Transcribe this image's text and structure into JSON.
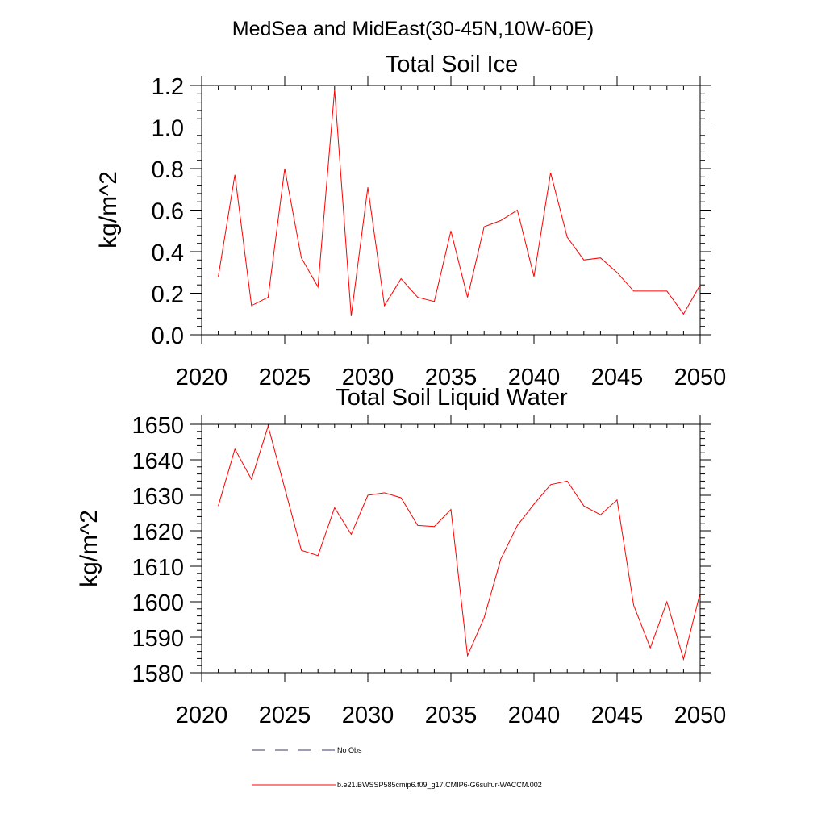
{
  "figure": {
    "title": "MedSea and MidEast(30-45N,10W-60E)"
  },
  "chart_data": [
    {
      "type": "line",
      "title": "Total Soil Ice",
      "xlabel": "",
      "ylabel": "kg/m^2",
      "xlim": [
        2020,
        2050
      ],
      "ylim": [
        0.0,
        1.2
      ],
      "xticks": [
        2020,
        2025,
        2030,
        2035,
        2040,
        2045,
        2050
      ],
      "xtick_labels": [
        "2020",
        "2025",
        "2030",
        "2035",
        "2040",
        "2045",
        "2050"
      ],
      "yticks": [
        0.0,
        0.2,
        0.4,
        0.6,
        0.8,
        1.0,
        1.2
      ],
      "ytick_labels": [
        "0.0",
        "0.2",
        "0.4",
        "0.6",
        "0.8",
        "1.0",
        "1.2"
      ],
      "grid": false,
      "series": [
        {
          "name": "b.e21.BWSSP585cmip6.f09_g17.CMIP6-G6sulfur-WACCM.002",
          "color": "#ff0000",
          "x": [
            2021,
            2022,
            2023,
            2024,
            2025,
            2026,
            2027,
            2028,
            2029,
            2030,
            2031,
            2032,
            2033,
            2034,
            2035,
            2036,
            2037,
            2038,
            2039,
            2040,
            2041,
            2042,
            2043,
            2044,
            2045,
            2046,
            2047,
            2048,
            2049,
            2050
          ],
          "y": [
            0.28,
            0.77,
            0.14,
            0.18,
            0.8,
            0.37,
            0.23,
            1.18,
            0.09,
            0.71,
            0.14,
            0.27,
            0.18,
            0.16,
            0.5,
            0.18,
            0.52,
            0.55,
            0.6,
            0.28,
            0.78,
            0.47,
            0.36,
            0.37,
            0.3,
            0.21,
            0.21,
            0.21,
            0.1,
            0.24
          ]
        }
      ]
    },
    {
      "type": "line",
      "title": "Total Soil Liquid Water",
      "xlabel": "",
      "ylabel": "kg/m^2",
      "xlim": [
        2020,
        2050
      ],
      "ylim": [
        1580,
        1650
      ],
      "xticks": [
        2020,
        2025,
        2030,
        2035,
        2040,
        2045,
        2050
      ],
      "xtick_labels": [
        "2020",
        "2025",
        "2030",
        "2035",
        "2040",
        "2045",
        "2050"
      ],
      "yticks": [
        1580,
        1590,
        1600,
        1610,
        1620,
        1630,
        1640,
        1650
      ],
      "ytick_labels": [
        "1580",
        "1590",
        "1600",
        "1610",
        "1620",
        "1630",
        "1640",
        "1650"
      ],
      "grid": false,
      "series": [
        {
          "name": "b.e21.BWSSP585cmip6.f09_g17.CMIP6-G6sulfur-WACCM.002",
          "color": "#ff0000",
          "x": [
            2021,
            2022,
            2023,
            2024,
            2025,
            2026,
            2027,
            2028,
            2029,
            2030,
            2031,
            2032,
            2033,
            2034,
            2035,
            2036,
            2037,
            2038,
            2039,
            2040,
            2041,
            2042,
            2043,
            2044,
            2045,
            2046,
            2047,
            2048,
            2049,
            2050
          ],
          "y": [
            1627,
            1643,
            1634.5,
            1649.5,
            1632,
            1614.5,
            1613,
            1626.5,
            1619,
            1630,
            1630.7,
            1629.3,
            1621.5,
            1621.2,
            1626,
            1584.8,
            1595.5,
            1612,
            1621.5,
            1627.5,
            1633,
            1634,
            1627,
            1624.5,
            1628.7,
            1599,
            1587,
            1600,
            1583.8,
            1602.5
          ]
        }
      ]
    }
  ],
  "legend": {
    "placement": "bottom",
    "items": [
      {
        "label": "No Obs",
        "color": "#3a3a6a",
        "style": "dashed"
      },
      {
        "label": "b.e21.BWSSP585cmip6.f09_g17.CMIP6-G6sulfur-WACCM.002",
        "color": "#ff0000",
        "style": "solid"
      }
    ]
  }
}
